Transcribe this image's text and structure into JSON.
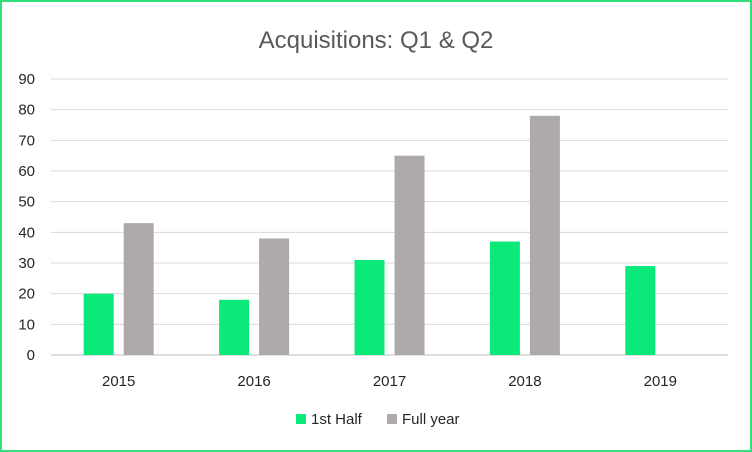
{
  "chart_data": {
    "type": "bar",
    "title": "Acquisitions: Q1 & Q2",
    "categories": [
      "2015",
      "2016",
      "2017",
      "2018",
      "2019"
    ],
    "series": [
      {
        "name": "1st Half",
        "values": [
          20,
          18,
          31,
          37,
          29
        ],
        "color": "#0be979"
      },
      {
        "name": "Full year",
        "values": [
          43,
          38,
          65,
          78,
          null
        ],
        "color": "#aeaaaa"
      }
    ],
    "ylim": [
      0,
      90
    ],
    "yticks": [
      "0",
      "10",
      "20",
      "30",
      "40",
      "50",
      "60",
      "70",
      "80",
      "90"
    ],
    "grid": true,
    "legend": "bottom",
    "xlabel": "",
    "ylabel": ""
  }
}
